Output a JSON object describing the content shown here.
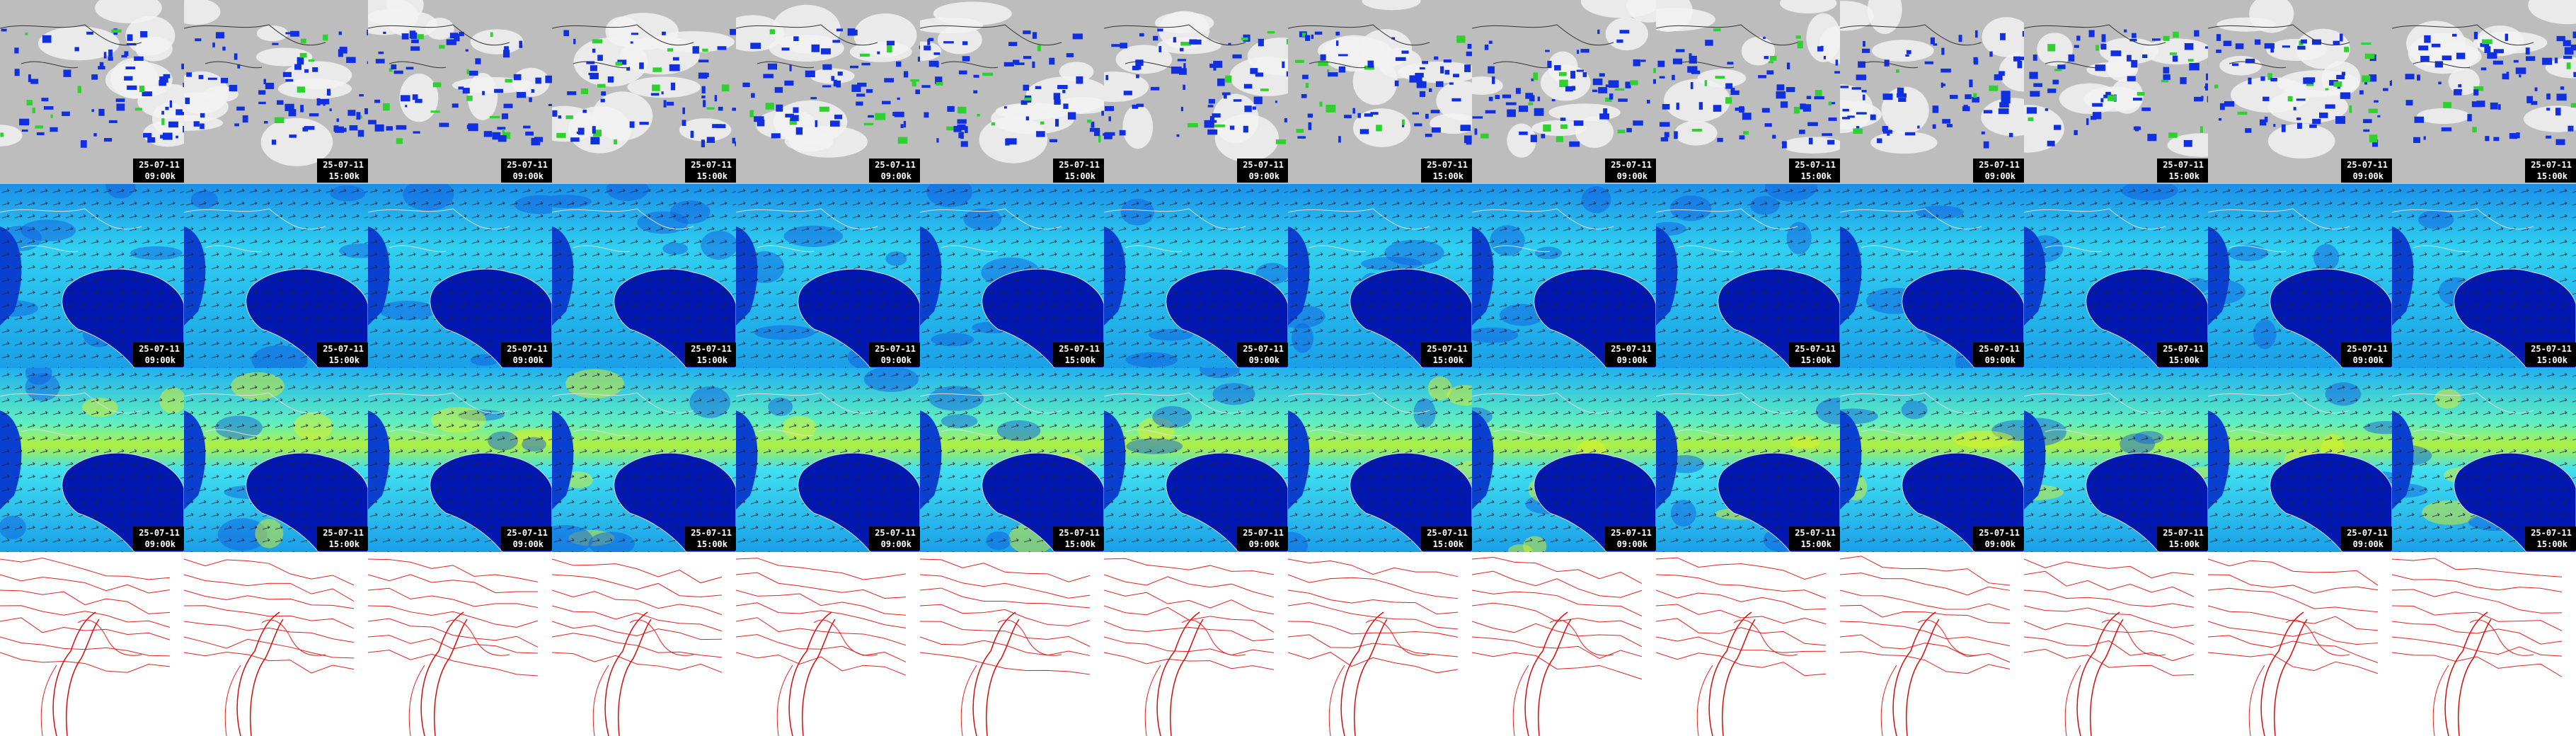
{
  "rows": [
    [
      {
        "date": "25-07-11",
        "time": "09:00k"
      },
      {
        "date": "25-07-11",
        "time": "15:00k"
      },
      {
        "date": "25-07-11",
        "time": "09:00k"
      },
      {
        "date": "25-07-11",
        "time": "15:00k"
      },
      {
        "date": "25-07-11",
        "time": "09:00k"
      },
      {
        "date": "25-07-11",
        "time": "15:00k"
      },
      {
        "date": "25-07-11",
        "time": "09:00k"
      },
      {
        "date": "25-07-11",
        "time": "15:00k"
      },
      {
        "date": "25-07-11",
        "time": "09:00k"
      },
      {
        "date": "25-07-11",
        "time": "15:00k"
      },
      {
        "date": "25-07-11",
        "time": "09:00k"
      },
      {
        "date": "25-07-11",
        "time": "15:00k"
      },
      {
        "date": "25-07-11",
        "time": "09:00k"
      },
      {
        "date": "25-07-11",
        "time": "15:00k"
      }
    ],
    [
      {
        "date": "25-07-11",
        "time": "09:00k"
      },
      {
        "date": "25-07-11",
        "time": "15:00k"
      },
      {
        "date": "25-07-11",
        "time": "09:00k"
      },
      {
        "date": "25-07-11",
        "time": "15:00k"
      },
      {
        "date": "25-07-11",
        "time": "09:00k"
      },
      {
        "date": "25-07-11",
        "time": "15:00k"
      },
      {
        "date": "25-07-11",
        "time": "09:00k"
      },
      {
        "date": "25-07-11",
        "time": "15:00k"
      },
      {
        "date": "25-07-11",
        "time": "09:00k"
      },
      {
        "date": "25-07-11",
        "time": "15:00k"
      },
      {
        "date": "25-07-11",
        "time": "09:00k"
      },
      {
        "date": "25-07-11",
        "time": "15:00k"
      },
      {
        "date": "25-07-11",
        "time": "09:00k"
      },
      {
        "date": "25-07-11",
        "time": "15:00k"
      }
    ],
    [
      {
        "date": "25-07-11",
        "time": "09:00k"
      },
      {
        "date": "25-07-11",
        "time": "15:00k"
      },
      {
        "date": "25-07-11",
        "time": "09:00k"
      },
      {
        "date": "25-07-11",
        "time": "15:00k"
      },
      {
        "date": "25-07-11",
        "time": "09:00k"
      },
      {
        "date": "25-07-11",
        "time": "15:00k"
      },
      {
        "date": "25-07-11",
        "time": "09:00k"
      },
      {
        "date": "25-07-11",
        "time": "15:00k"
      },
      {
        "date": "25-07-11",
        "time": "09:00k"
      },
      {
        "date": "25-07-11",
        "time": "15:00k"
      },
      {
        "date": "25-07-11",
        "time": "09:00k"
      },
      {
        "date": "25-07-11",
        "time": "15:00k"
      },
      {
        "date": "25-07-11",
        "time": "09:00k"
      },
      {
        "date": "25-07-11",
        "time": "15:00k"
      }
    ]
  ]
}
